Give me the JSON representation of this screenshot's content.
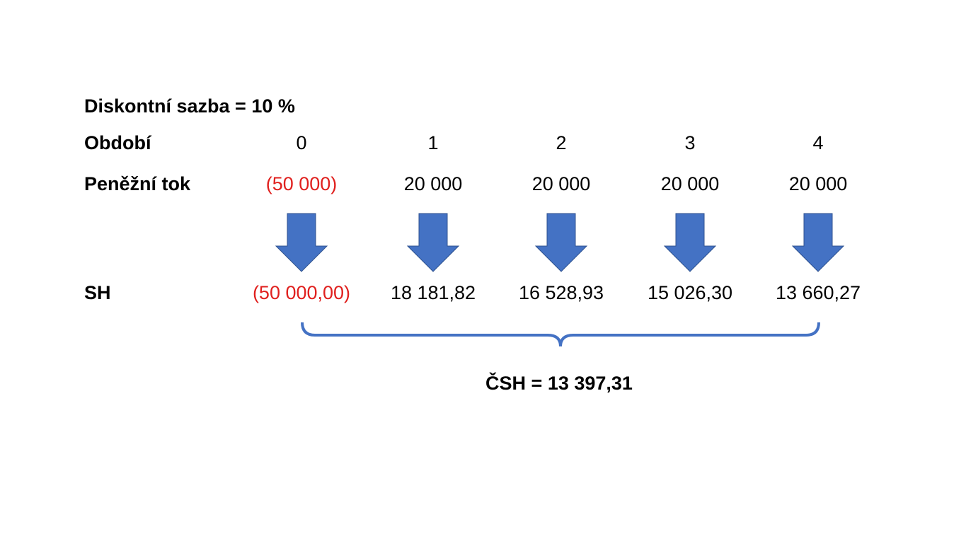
{
  "title": "Diskontní sazba = 10 %",
  "rows": {
    "period": {
      "label": "Období",
      "cells": [
        "0",
        "1",
        "2",
        "3",
        "4"
      ]
    },
    "cash_flow": {
      "label": "Peněžní tok",
      "cells": [
        "(50 000)",
        "20 000",
        "20 000",
        "20 000",
        "20 000"
      ]
    },
    "present_value": {
      "label": "SH",
      "cells": [
        "(50 000,00)",
        "18 181,82",
        "16 528,93",
        "15 026,30",
        "13 660,27"
      ]
    }
  },
  "result": "ČSH = 13 397,31"
}
